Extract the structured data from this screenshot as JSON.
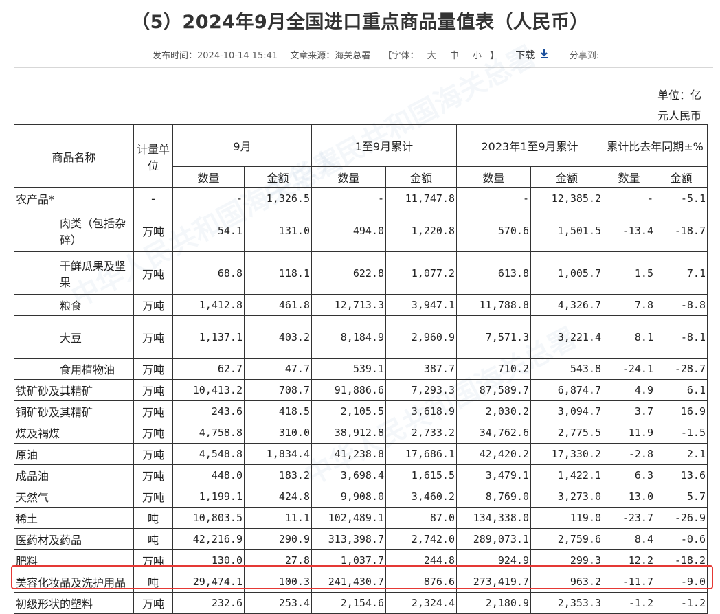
{
  "title": "（5）2024年9月全国进口重点商品量值表（人民币）",
  "meta": {
    "publish": "发布时间：2024-10-14 15:41",
    "source": "文章来源：海关总署",
    "font_open": "【字体：",
    "font_large": "大",
    "font_medium": "中",
    "font_small": "小",
    "font_close": "】",
    "download": "下载",
    "download_icon": "download-arrow-icon",
    "share": "分享到:"
  },
  "unit": {
    "line1": "单位：亿",
    "line2": "元人民币"
  },
  "header": {
    "name": "商品名称",
    "unit": "计量单位",
    "month": "9月",
    "ytd": "1至9月累计",
    "prev": "2023年1至9月累计",
    "yoy": "累计比去年同期±%",
    "qty": "数量",
    "amt": "金额"
  },
  "rows": [
    {
      "name": "农产品*",
      "unit": "-",
      "c1": "-",
      "c2": "1,326.5",
      "c3": "-",
      "c4": "11,747.8",
      "c5": "-",
      "c6": "12,385.2",
      "c7": "-",
      "c8": "-5.1"
    },
    {
      "name": "肉类（包括杂碎）",
      "unit": "万吨",
      "c1": "54.1",
      "c2": "131.0",
      "c3": "494.0",
      "c4": "1,220.8",
      "c5": "570.6",
      "c6": "1,501.5",
      "c7": "-13.4",
      "c8": "-18.7"
    },
    {
      "name": "干鲜瓜果及坚果",
      "unit": "万吨",
      "c1": "68.8",
      "c2": "118.1",
      "c3": "622.8",
      "c4": "1,077.2",
      "c5": "613.8",
      "c6": "1,005.7",
      "c7": "1.5",
      "c8": "7.1"
    },
    {
      "name": "粮食",
      "unit": "万吨",
      "c1": "1,412.8",
      "c2": "461.8",
      "c3": "12,713.3",
      "c4": "3,947.1",
      "c5": "11,788.8",
      "c6": "4,326.7",
      "c7": "7.8",
      "c8": "-8.8"
    },
    {
      "name": "大豆",
      "unit": "万吨",
      "c1": "1,137.1",
      "c2": "403.2",
      "c3": "8,184.9",
      "c4": "2,960.9",
      "c5": "7,571.3",
      "c6": "3,221.4",
      "c7": "8.1",
      "c8": "-8.1"
    },
    {
      "name": "食用植物油",
      "unit": "万吨",
      "c1": "62.7",
      "c2": "47.7",
      "c3": "539.1",
      "c4": "387.7",
      "c5": "710.2",
      "c6": "543.8",
      "c7": "-24.1",
      "c8": "-28.7"
    },
    {
      "name": "铁矿砂及其精矿",
      "unit": "万吨",
      "c1": "10,413.2",
      "c2": "708.7",
      "c3": "91,886.6",
      "c4": "7,293.3",
      "c5": "87,589.7",
      "c6": "6,874.7",
      "c7": "4.9",
      "c8": "6.1"
    },
    {
      "name": "铜矿砂及其精矿",
      "unit": "万吨",
      "c1": "243.6",
      "c2": "418.5",
      "c3": "2,105.5",
      "c4": "3,618.9",
      "c5": "2,030.2",
      "c6": "3,094.7",
      "c7": "3.7",
      "c8": "16.9"
    },
    {
      "name": "煤及褐煤",
      "unit": "万吨",
      "c1": "4,758.8",
      "c2": "310.0",
      "c3": "38,912.8",
      "c4": "2,733.2",
      "c5": "34,762.6",
      "c6": "2,775.5",
      "c7": "11.9",
      "c8": "-1.5"
    },
    {
      "name": "原油",
      "unit": "万吨",
      "c1": "4,548.8",
      "c2": "1,834.4",
      "c3": "41,238.8",
      "c4": "17,686.1",
      "c5": "42,420.2",
      "c6": "17,330.2",
      "c7": "-2.8",
      "c8": "2.1"
    },
    {
      "name": "成品油",
      "unit": "万吨",
      "c1": "448.0",
      "c2": "183.2",
      "c3": "3,698.4",
      "c4": "1,615.5",
      "c5": "3,479.1",
      "c6": "1,422.1",
      "c7": "6.3",
      "c8": "13.6"
    },
    {
      "name": "天然气",
      "unit": "万吨",
      "c1": "1,199.1",
      "c2": "424.8",
      "c3": "9,908.0",
      "c4": "3,460.2",
      "c5": "8,769.0",
      "c6": "3,273.0",
      "c7": "13.0",
      "c8": "5.7"
    },
    {
      "name": "稀土",
      "unit": "吨",
      "c1": "10,803.5",
      "c2": "11.1",
      "c3": "102,489.1",
      "c4": "87.0",
      "c5": "134,338.0",
      "c6": "119.0",
      "c7": "-23.7",
      "c8": "-26.9"
    },
    {
      "name": "医药材及药品",
      "unit": "吨",
      "c1": "42,216.9",
      "c2": "290.9",
      "c3": "313,398.7",
      "c4": "2,742.0",
      "c5": "289,073.1",
      "c6": "2,759.6",
      "c7": "8.4",
      "c8": "-0.6"
    },
    {
      "name": "肥料",
      "unit": "万吨",
      "c1": "130.0",
      "c2": "27.8",
      "c3": "1,037.7",
      "c4": "244.8",
      "c5": "924.9",
      "c6": "299.3",
      "c7": "12.2",
      "c8": "-18.2"
    },
    {
      "name": "美容化妆品及洗护用品",
      "unit": "吨",
      "c1": "29,474.1",
      "c2": "100.3",
      "c3": "241,430.7",
      "c4": "876.6",
      "c5": "273,419.7",
      "c6": "963.2",
      "c7": "-11.7",
      "c8": "-9.0"
    },
    {
      "name": "初级形状的塑料",
      "unit": "万吨",
      "c1": "232.6",
      "c2": "253.4",
      "c3": "2,154.6",
      "c4": "2,324.4",
      "c5": "2,180.9",
      "c6": "2,353.3",
      "c7": "-1.2",
      "c8": "-1.2"
    }
  ],
  "colors": {
    "highlight_border": "#e53935",
    "download_icon": "#1a4f9c",
    "table_border": "#333333"
  }
}
